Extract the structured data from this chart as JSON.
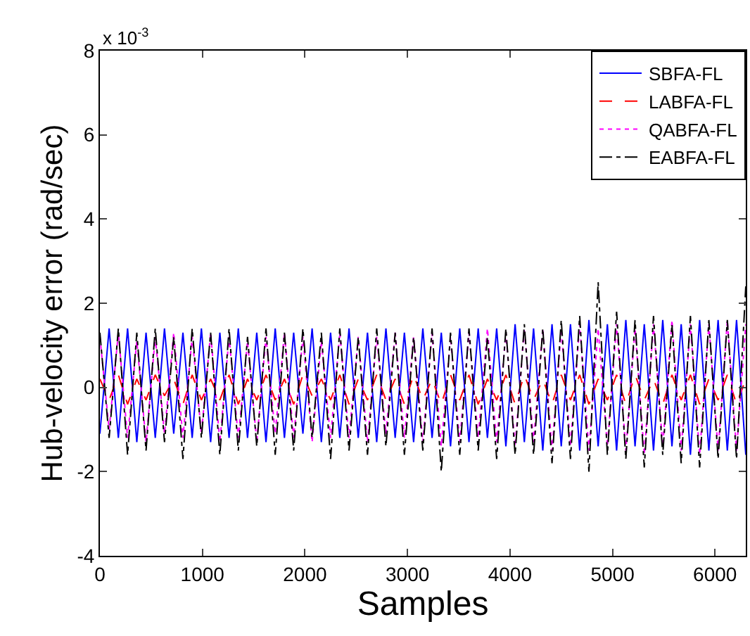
{
  "chart_data": {
    "type": "line",
    "xlabel": "Samples",
    "ylabel": "Hub-velocity error (rad/sec)",
    "annotations": [
      "x 10$^{-3}$"
    ],
    "xlim": [
      0,
      6300
    ],
    "xticks": [
      0,
      1000,
      2000,
      3000,
      4000,
      5000,
      6000
    ],
    "ylim": [
      -4,
      8
    ],
    "yticks": [
      -4,
      -2,
      0,
      2,
      4,
      6,
      8
    ],
    "grid": false,
    "legend": "top right",
    "x": [
      0,
      90,
      180,
      270,
      360,
      450,
      540,
      630,
      720,
      810,
      900,
      990,
      1080,
      1170,
      1260,
      1350,
      1440,
      1530,
      1620,
      1710,
      1800,
      1890,
      1980,
      2070,
      2160,
      2250,
      2340,
      2430,
      2520,
      2610,
      2700,
      2790,
      2880,
      2970,
      3060,
      3150,
      3240,
      3330,
      3420,
      3510,
      3600,
      3690,
      3780,
      3870,
      3960,
      4050,
      4140,
      4230,
      4320,
      4410,
      4500,
      4590,
      4680,
      4770,
      4860,
      4950,
      5040,
      5130,
      5220,
      5310,
      5400,
      5490,
      5580,
      5670,
      5760,
      5850,
      5940,
      6030,
      6120,
      6210,
      6300
    ],
    "series": [
      {
        "name": "SBFA-FL",
        "color": "#0000ff",
        "line_style": "solid",
        "values": [
          -1.1,
          1.4,
          -1.2,
          1.4,
          -1.3,
          1.3,
          -1.2,
          1.4,
          -1.1,
          1.3,
          -1.2,
          1.4,
          -1.3,
          1.3,
          -1.2,
          1.4,
          -1.2,
          1.3,
          -1.3,
          1.4,
          -1.2,
          1.3,
          -1.1,
          1.4,
          -1.3,
          1.3,
          -1.2,
          1.4,
          -1.2,
          1.3,
          -1.3,
          1.4,
          -1.2,
          1.3,
          -1.3,
          1.4,
          -1.2,
          1.3,
          -1.4,
          1.4,
          -1.3,
          1.4,
          -1.2,
          1.4,
          -1.4,
          1.5,
          -1.3,
          1.4,
          -1.5,
          1.5,
          -1.4,
          1.5,
          -1.5,
          1.6,
          -1.4,
          1.5,
          -1.5,
          1.6,
          -1.4,
          1.5,
          -1.5,
          1.6,
          -1.4,
          1.5,
          -1.6,
          1.6,
          -1.5,
          1.6,
          -1.5,
          1.6,
          -1.6
        ]
      },
      {
        "name": "LABFA-FL",
        "color": "#ff0000",
        "line_style": "dashed",
        "values": [
          0.2,
          -0.3,
          0.3,
          -0.4,
          0.2,
          -0.3,
          0.3,
          -0.2,
          0.2,
          -0.4,
          0.3,
          -0.3,
          0.2,
          -0.3,
          0.3,
          -0.4,
          0.2,
          -0.3,
          0.3,
          -0.3,
          0.2,
          -0.4,
          0.3,
          -0.2,
          0.2,
          -0.3,
          0.3,
          -0.4,
          0.2,
          -0.3,
          0.3,
          -0.3,
          0.2,
          -0.4,
          0.3,
          -0.3,
          0.2,
          -0.4,
          0.3,
          -0.3,
          0.3,
          -0.4,
          0.2,
          -0.3,
          0.3,
          -0.4,
          0.3,
          -0.3,
          0.2,
          -0.4,
          0.3,
          -0.3,
          0.3,
          -0.4,
          0.2,
          -0.3,
          0.3,
          -0.4,
          0.3,
          -0.3,
          0.2,
          -0.4,
          0.3,
          -0.3,
          0.3,
          -0.4,
          0.2,
          -0.3,
          0.3,
          -0.4,
          0.2
        ]
      },
      {
        "name": "QABFA-FL",
        "color": "#ff00ff",
        "line_style": "dotted",
        "values": [
          1.2,
          -1.0,
          1.3,
          -1.2,
          1.1,
          -1.3,
          1.2,
          -1.1,
          1.3,
          -1.2,
          1.2,
          -1.1,
          1.3,
          -1.3,
          1.2,
          -1.2,
          1.1,
          -1.3,
          1.2,
          -1.1,
          1.3,
          -1.2,
          1.2,
          -1.3,
          1.1,
          -1.2,
          1.3,
          -1.2,
          1.2,
          -1.3,
          1.2,
          -1.1,
          1.3,
          -1.2,
          1.2,
          -1.3,
          1.3,
          -1.4,
          1.2,
          -1.3,
          1.3,
          -1.2,
          1.4,
          -1.3,
          1.3,
          -1.4,
          1.4,
          -1.3,
          1.4,
          -1.5,
          1.4,
          -1.4,
          1.5,
          -1.5,
          1.4,
          -1.4,
          1.5,
          -1.5,
          1.4,
          -1.6,
          1.5,
          -1.4,
          1.6,
          -1.5,
          1.5,
          -1.6,
          1.5,
          -1.5,
          1.6,
          -1.5,
          1.5
        ]
      },
      {
        "name": "EABFA-FL",
        "color": "#000000",
        "line_style": "dashdot",
        "values": [
          1.3,
          -1.2,
          1.4,
          -1.6,
          1.3,
          -1.5,
          1.4,
          -1.3,
          1.2,
          -1.7,
          1.4,
          -1.2,
          1.3,
          -1.6,
          1.4,
          -1.5,
          1.2,
          -1.4,
          1.4,
          -1.6,
          1.3,
          -1.5,
          1.4,
          -1.2,
          1.3,
          -1.7,
          1.4,
          -1.5,
          1.2,
          -1.6,
          1.4,
          -1.4,
          1.3,
          -1.6,
          1.2,
          -1.5,
          1.4,
          -2.0,
          1.3,
          -1.6,
          1.4,
          -1.5,
          1.2,
          -1.7,
          1.4,
          -1.6,
          1.5,
          -1.6,
          1.4,
          -1.8,
          1.6,
          -1.7,
          1.7,
          -2.0,
          2.5,
          -1.6,
          1.8,
          -1.7,
          1.6,
          -1.9,
          1.7,
          -1.6,
          1.5,
          -1.8,
          1.7,
          -1.9,
          1.6,
          -1.7,
          1.6,
          -1.7,
          2.4
        ]
      }
    ]
  }
}
